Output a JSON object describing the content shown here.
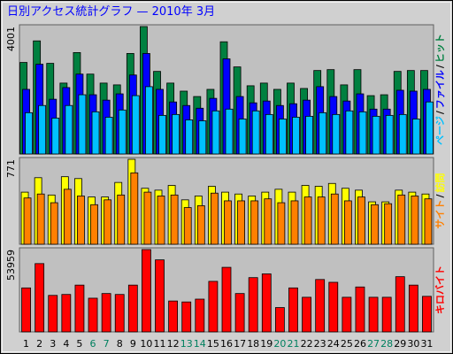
{
  "chart_data": [
    {
      "type": "bar",
      "title": "日別アクセス統計グラフ —  2010年 3月",
      "ylim": [
        0,
        4001
      ],
      "yticks": [
        4001
      ],
      "legend_separator": "/",
      "series": [
        {
          "name": "ヒット",
          "color": "#008040",
          "values": [
            2874,
            3551,
            2846,
            2226,
            3184,
            2508,
            2226,
            2170,
            3156,
            4001,
            2593,
            2226,
            1973,
            1804,
            2029,
            3523,
            2734,
            2142,
            2226,
            2029,
            2226,
            2057,
            2621,
            2649,
            2170,
            2649,
            1832,
            1860,
            2593,
            2621,
            2621
          ]
        },
        {
          "name": "ファイル",
          "color": "#0000ff",
          "values": [
            2029,
            2818,
            1719,
            2085,
            2508,
            1860,
            1691,
            1888,
            2480,
            3156,
            2029,
            1634,
            1522,
            1437,
            1747,
            2987,
            1804,
            1606,
            1663,
            1522,
            1578,
            1691,
            2114,
            1804,
            1663,
            1888,
            1409,
            1409,
            2001,
            1973,
            2029
          ]
        },
        {
          "name": "ページ",
          "color": "#00c0ff",
          "values": [
            1296,
            1522,
            1127,
            1522,
            1860,
            1324,
            1155,
            1381,
            1832,
            2114,
            1212,
            1240,
            1071,
            1043,
            1353,
            1409,
            1099,
            1353,
            1240,
            1099,
            1155,
            1184,
            1296,
            1240,
            1353,
            1324,
            1184,
            1212,
            1240,
            1099,
            1634
          ]
        }
      ]
    },
    {
      "type": "bar",
      "ylim": [
        0,
        771
      ],
      "yticks": [
        771
      ],
      "legend_separator": "/",
      "series": [
        {
          "name": "訪問",
          "color": "#ffff00",
          "values": [
            473,
            604,
            447,
            613,
            596,
            429,
            429,
            561,
            771,
            508,
            491,
            534,
            403,
            438,
            526,
            473,
            456,
            438,
            473,
            499,
            473,
            534,
            526,
            552,
            508,
            491,
            385,
            385,
            491,
            473,
            456
          ]
        },
        {
          "name": "サイト",
          "color": "#ff8000",
          "values": [
            420,
            456,
            377,
            499,
            438,
            359,
            403,
            447,
            648,
            473,
            438,
            447,
            333,
            350,
            464,
            394,
            394,
            394,
            412,
            377,
            394,
            429,
            429,
            456,
            394,
            429,
            359,
            368,
            447,
            438,
            412
          ]
        }
      ]
    },
    {
      "type": "bar",
      "ylim": [
        0,
        53959
      ],
      "yticks": [
        53959
      ],
      "categories": [
        "1",
        "2",
        "3",
        "4",
        "5",
        "6",
        "7",
        "8",
        "9",
        "10",
        "11",
        "12",
        "13",
        "14",
        "15",
        "16",
        "17",
        "18",
        "19",
        "20",
        "21",
        "22",
        "23",
        "24",
        "25",
        "26",
        "27",
        "28",
        "29",
        "30",
        "31"
      ],
      "category_colors": [
        "#000000",
        "#000000",
        "#000000",
        "#000000",
        "#000000",
        "#00805f",
        "#00805f",
        "#000000",
        "#000000",
        "#000000",
        "#000000",
        "#000000",
        "#00805f",
        "#00805f",
        "#000000",
        "#000000",
        "#000000",
        "#000000",
        "#000000",
        "#00805f",
        "#00805f",
        "#000000",
        "#000000",
        "#000000",
        "#000000",
        "#000000",
        "#00805f",
        "#00805f",
        "#000000",
        "#000000",
        "#000000"
      ],
      "series": [
        {
          "name": "キロバイト",
          "color": "#ff0000",
          "values": [
            28820,
            44764,
            23915,
            24528,
            30660,
            22075,
            25141,
            24528,
            30660,
            53959,
            47216,
            20236,
            19622,
            21462,
            33113,
            42311,
            25141,
            35566,
            38018,
            15943,
            28820,
            22688,
            34339,
            32500,
            22688,
            29434,
            22688,
            22688,
            36179,
            30660,
            23302
          ]
        }
      ]
    }
  ]
}
